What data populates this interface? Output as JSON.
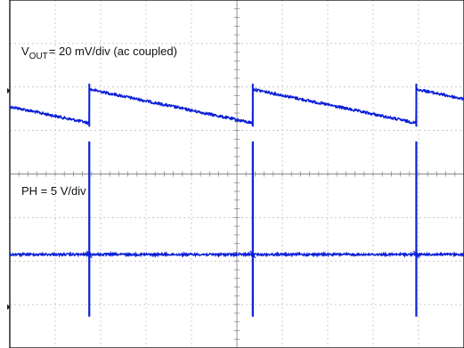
{
  "chart_data": {
    "type": "line",
    "grid": true,
    "divisions": {
      "x": 10,
      "y": 8
    },
    "trace_color": "#0a1fd8",
    "channels": [
      {
        "name": "VOUT",
        "label_main": "V",
        "label_sub": "OUT",
        "label_rest": "= 20 mV/div (ac coupled)",
        "waveform": "sawtooth",
        "edges_div": [
          1.75,
          5.35,
          8.95
        ],
        "ramp_mV": [
          0,
          -15.6
        ],
        "step_mV": 16.5,
        "baseline_div": 2.05
      },
      {
        "name": "PH",
        "label": "PH = 5 V/div",
        "waveform": "pulse",
        "pulses_div": [
          1.75,
          5.35,
          8.95
        ],
        "baseline_div": 5.85,
        "pulse_height_V": 13
      }
    ]
  }
}
